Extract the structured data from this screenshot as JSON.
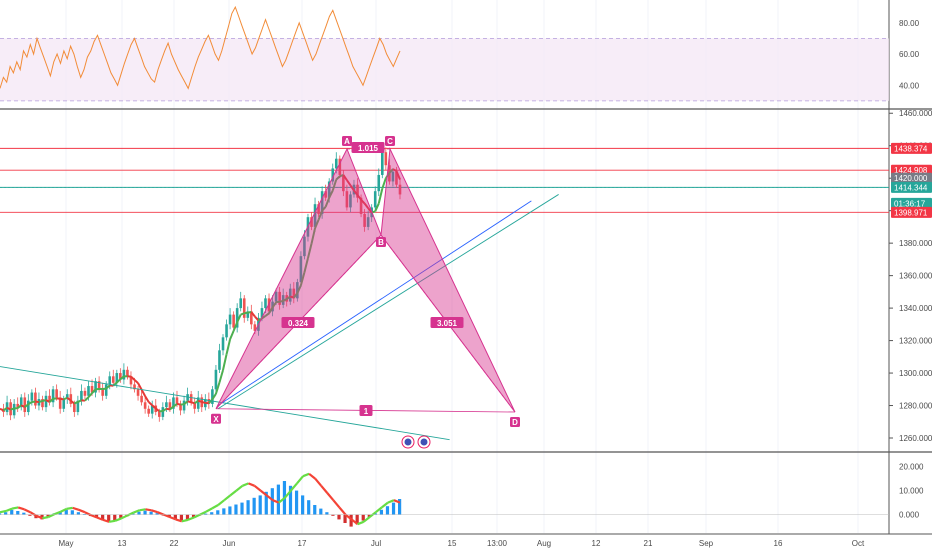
{
  "chart_data": {
    "type": "line",
    "x_axis": {
      "tick_labels": [
        "May",
        "13",
        "22",
        "Jun",
        "17",
        "Jul",
        "15",
        "13:00",
        "Aug",
        "12",
        "21",
        "Sep",
        "16",
        "Oct"
      ]
    },
    "rsi_panel": {
      "type": "line",
      "y_ticks": [
        "80.00",
        "60.00",
        "40.00"
      ],
      "ylim": [
        28,
        92
      ],
      "band": [
        30,
        70
      ],
      "series": [
        {
          "values": [
            38,
            45,
            42,
            52,
            48,
            55,
            50,
            62,
            58,
            66,
            60,
            70,
            64,
            58,
            52,
            46,
            55,
            60,
            54,
            62,
            57,
            65,
            60,
            52,
            45,
            50,
            58,
            62,
            68,
            72,
            66,
            60,
            54,
            48,
            44,
            40,
            47,
            54,
            60,
            66,
            70,
            64,
            58,
            52,
            48,
            44,
            42,
            50,
            56,
            62,
            67,
            60,
            55,
            50,
            46,
            42,
            38,
            45,
            52,
            58,
            63,
            68,
            72,
            66,
            60,
            56,
            62,
            70,
            78,
            86,
            90,
            84,
            78,
            72,
            66,
            60,
            64,
            70,
            76,
            82,
            76,
            70,
            64,
            58,
            52,
            56,
            62,
            68,
            74,
            80,
            74,
            68,
            62,
            56,
            60,
            66,
            72,
            78,
            84,
            88,
            82,
            76,
            70,
            64,
            58,
            52,
            48,
            44,
            40,
            46,
            52,
            58,
            64,
            70,
            66,
            60,
            56,
            52,
            57,
            62
          ]
        }
      ]
    },
    "price_panel": {
      "type": "candlestick",
      "y_ticks": [
        "1460.000",
        "1440.000",
        "1420.000",
        "1400.000",
        "1380.000",
        "1360.000",
        "1340.000",
        "1320.000",
        "1300.000",
        "1280.000",
        "1260.000"
      ],
      "ylim": [
        1252,
        1462
      ],
      "closes": [
        1278,
        1276,
        1282,
        1274,
        1281,
        1279,
        1285,
        1276,
        1283,
        1288,
        1280,
        1284,
        1279,
        1286,
        1282,
        1290,
        1285,
        1278,
        1284,
        1287,
        1281,
        1276,
        1283,
        1289,
        1286,
        1292,
        1288,
        1295,
        1290,
        1286,
        1293,
        1298,
        1294,
        1300,
        1296,
        1302,
        1298,
        1293,
        1290,
        1286,
        1282,
        1278,
        1275,
        1280,
        1276,
        1273,
        1279,
        1282,
        1278,
        1285,
        1281,
        1277,
        1283,
        1287,
        1282,
        1278,
        1285,
        1279,
        1284,
        1281,
        1290,
        1302,
        1314,
        1322,
        1330,
        1336,
        1328,
        1340,
        1346,
        1334,
        1338,
        1330,
        1326,
        1334,
        1340,
        1346,
        1338,
        1344,
        1350,
        1342,
        1348,
        1344,
        1352,
        1346,
        1356,
        1372,
        1384,
        1396,
        1390,
        1404,
        1398,
        1412,
        1408,
        1418,
        1426,
        1432,
        1422,
        1412,
        1402,
        1410,
        1416,
        1408,
        1398,
        1390,
        1396,
        1402,
        1412,
        1422,
        1436,
        1428,
        1418,
        1424,
        1416,
        1410
      ],
      "horizontal_levels": [
        {
          "label": "1438.374",
          "value": 1438.374,
          "color": "#f23645"
        },
        {
          "label": "1424.908",
          "value": 1424.908,
          "color": "#f23645"
        },
        {
          "label": "1420.000",
          "value": 1420.0,
          "color": "#787b86"
        },
        {
          "label": "1414.344",
          "value": 1414.344,
          "color": "#26a69a"
        },
        {
          "label": "01:36:17",
          "value": 1404.5,
          "color": "#26a69a"
        },
        {
          "label": "1398.971",
          "value": 1398.971,
          "color": "#f23645"
        }
      ],
      "harmonic_pattern": {
        "points": [
          {
            "name": "X",
            "date_index": 16,
            "price": 1278
          },
          {
            "name": "A",
            "date_index": 27,
            "price": 1438
          },
          {
            "name": "B",
            "date_index": 32,
            "price": 1385
          },
          {
            "name": "C",
            "date_index": 35,
            "price": 1438
          },
          {
            "name": "D",
            "date_index": 47,
            "price": 1276
          }
        ],
        "ratios": [
          "0.324",
          "1.015",
          "3.051",
          "1"
        ],
        "color": "#d6338f"
      },
      "trend_lines": [
        {
          "from": [
            0,
            1304
          ],
          "to": [
            33,
            1259
          ],
          "color": "#26a69a"
        },
        {
          "from": [
            16,
            1278
          ],
          "to": [
            41,
            1410
          ],
          "color": "#26a69a"
        },
        {
          "from": [
            16,
            1280
          ],
          "to": [
            39,
            1406
          ],
          "color": "#2962ff"
        }
      ]
    },
    "oscillator_panel": {
      "type": "bar",
      "y_ticks": [
        "20.000",
        "10.000",
        "0.000"
      ],
      "ylim": [
        -6,
        24
      ],
      "histogram": [
        0.5,
        1,
        2,
        1.5,
        0.8,
        -0.5,
        -1.5,
        -2,
        -1,
        0.5,
        1.2,
        2,
        1.8,
        1,
        0.2,
        -0.6,
        -1.4,
        -2.2,
        -3,
        -2.4,
        -1.6,
        -0.8,
        0.4,
        1.2,
        1.6,
        1.2,
        0.6,
        -0.4,
        -1.2,
        -2,
        -2.6,
        -2,
        -1.2,
        -0.4,
        0.4,
        1,
        1.8,
        2.6,
        3.4,
        4.2,
        5,
        6,
        7,
        8,
        9.5,
        11,
        12.5,
        14,
        12,
        10,
        8,
        6,
        4,
        2.5,
        1,
        -0.5,
        -2,
        -3.5,
        -5,
        -4,
        -2.5,
        -1,
        0.5,
        2,
        3.5,
        5,
        6.5
      ],
      "wave": [
        1,
        1.5,
        2.5,
        3,
        2.2,
        1,
        -0.5,
        -1.5,
        -1,
        0.2,
        1.2,
        2.4,
        2.8,
        2,
        1,
        -0.2,
        -1.2,
        -2.2,
        -3,
        -2.6,
        -1.6,
        -0.4,
        0.8,
        1.8,
        2.2,
        1.8,
        1,
        0,
        -1,
        -2,
        -2.8,
        -2.2,
        -1.2,
        0,
        1.2,
        2.6,
        4,
        6,
        8,
        10,
        12,
        13,
        12,
        10,
        8,
        6,
        5,
        7,
        10,
        13,
        16,
        17,
        15,
        12,
        9,
        6,
        3,
        0,
        -2,
        -4,
        -3,
        -1,
        1,
        3,
        5,
        6,
        5
      ]
    },
    "colors": {
      "pattern_fill": "#d6338f",
      "bull": "#26a69a",
      "bear": "#ef5350",
      "rsi_line": "#f28c38",
      "rsi_band": "#f3e5f5",
      "macd_fast": "#66dd44",
      "macd_slow": "#f44336"
    }
  }
}
